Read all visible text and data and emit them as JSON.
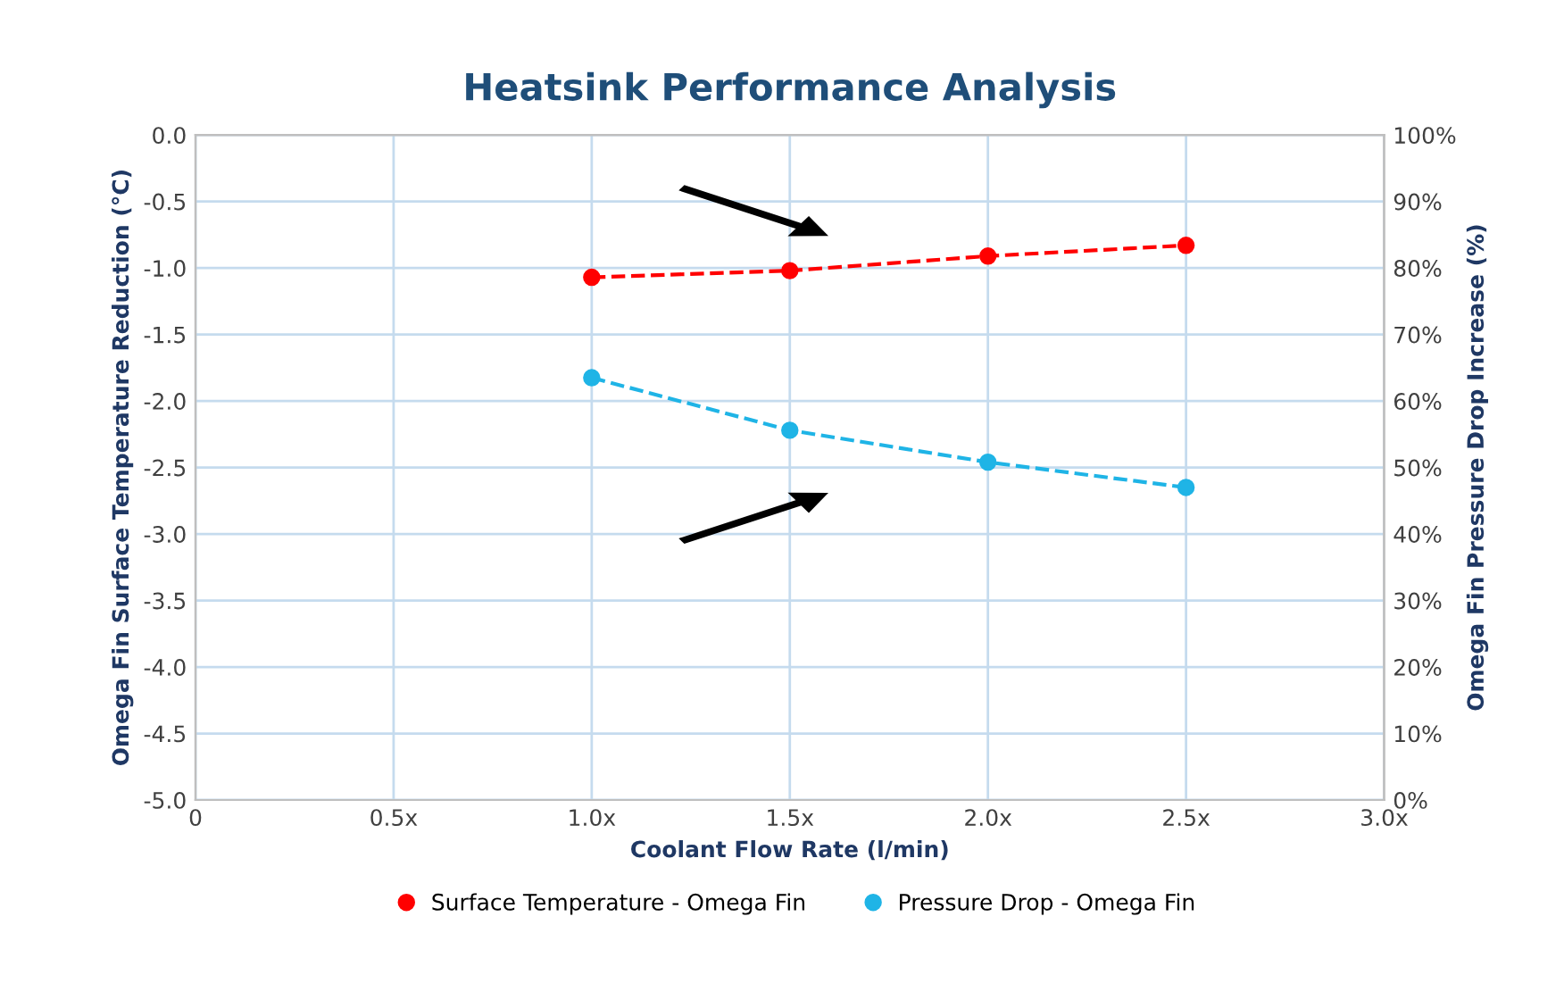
{
  "chart_data": {
    "type": "line",
    "title": "Heatsink Performance Analysis",
    "xlabel": "Coolant Flow Rate (l/min)",
    "ylabel": "Omega Fin Surface Temperature Reduction (°C)",
    "y2label": "Omega Fin Pressure Drop Increase (%)",
    "xlim": [
      0,
      3
    ],
    "xticks": [
      0,
      {
        "value": 0.5,
        "label": "0.5x"
      },
      {
        "value": 1,
        "label": "1.0x"
      },
      {
        "value": 1.5,
        "label": "1.5x"
      },
      {
        "value": 2,
        "label": "2.0x"
      },
      {
        "value": 2.5,
        "label": "2.5x"
      },
      {
        "value": 3,
        "label": "3.0x"
      }
    ],
    "ylim": [
      -5,
      0
    ],
    "yticks": [
      {
        "value": -5,
        "label": "-5.0"
      },
      {
        "value": -4.5,
        "label": "-4.5"
      },
      {
        "value": -4,
        "label": "-4.0"
      },
      {
        "value": -3.5,
        "label": "-3.5"
      },
      {
        "value": -3,
        "label": "-3.0"
      },
      {
        "value": -2.5,
        "label": "-2.5"
      },
      {
        "value": -2,
        "label": "-2.0"
      },
      {
        "value": -1.5,
        "label": "-1.5"
      },
      {
        "value": -1,
        "label": "-1.0"
      },
      {
        "value": -0.5,
        "label": "-0.5"
      },
      {
        "value": 0,
        "label": "0.0"
      }
    ],
    "y2lim": [
      0,
      100
    ],
    "y2ticks": [
      {
        "value": 0,
        "label": "0%"
      },
      {
        "value": 10,
        "label": "10%"
      },
      {
        "value": 20,
        "label": "20%"
      },
      {
        "value": 30,
        "label": "30%"
      },
      {
        "value": 40,
        "label": "40%"
      },
      {
        "value": 50,
        "label": "50%"
      },
      {
        "value": 60,
        "label": "60%"
      },
      {
        "value": 70,
        "label": "70%"
      },
      {
        "value": 80,
        "label": "80%"
      },
      {
        "value": 90,
        "label": "90%"
      },
      {
        "value": 100,
        "label": "100%"
      }
    ],
    "x": [
      1,
      1.5,
      2,
      2.5
    ],
    "series": [
      {
        "name": "Surface Temperature - Omega Fin",
        "color": "#ff0000",
        "values": [
          -1.07,
          -1.02,
          -0.91,
          -0.83
        ]
      },
      {
        "name": "Pressure Drop - Omega Fin",
        "color": "#1fb4e6",
        "values": [
          63.5,
          55.6,
          50.8,
          47
        ],
        "axis": "y2"
      }
    ],
    "marker": "circle",
    "line_style": "dashed",
    "grid": true,
    "legend": "bottom"
  }
}
